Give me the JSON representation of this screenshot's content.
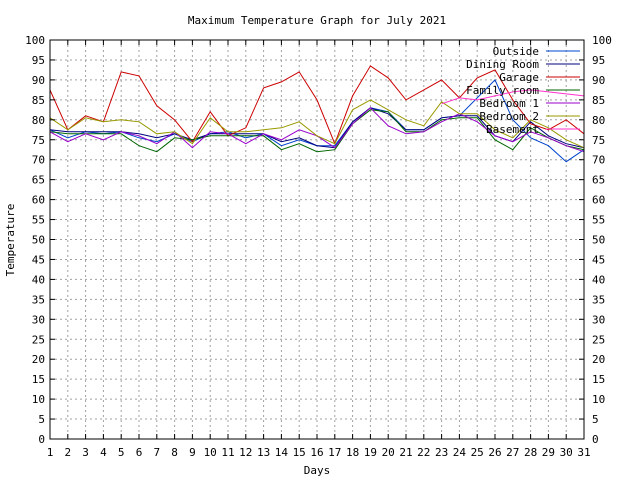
{
  "chart_data": {
    "type": "line",
    "title": "Maximum Temperature Graph for July 2021",
    "xlabel": "Days",
    "ylabel": "Temperature",
    "xlim": [
      1,
      31
    ],
    "ylim": [
      0,
      100
    ],
    "x_ticks": [
      1,
      2,
      3,
      4,
      5,
      6,
      7,
      8,
      9,
      10,
      11,
      12,
      13,
      14,
      15,
      16,
      17,
      18,
      19,
      20,
      21,
      22,
      23,
      24,
      25,
      26,
      27,
      28,
      29,
      30,
      31
    ],
    "y_ticks": [
      0,
      5,
      10,
      15,
      20,
      25,
      30,
      35,
      40,
      45,
      50,
      55,
      60,
      65,
      70,
      75,
      80,
      85,
      90,
      95,
      100
    ],
    "y_ticks_right": true,
    "grid": true,
    "legend_position": "top-right",
    "x": [
      1,
      2,
      3,
      4,
      5,
      6,
      7,
      8,
      9,
      10,
      11,
      12,
      13,
      14,
      15,
      16,
      17,
      18,
      19,
      20,
      21,
      22,
      23,
      24,
      25,
      26,
      27,
      28,
      29,
      30,
      31
    ],
    "series": [
      {
        "name": "Outside",
        "color": "#0044cc",
        "values": [
          77.5,
          75.5,
          77,
          76.5,
          77,
          75.5,
          74.5,
          76.5,
          74.5,
          76.5,
          77,
          75.5,
          76.5,
          73.5,
          75,
          73.5,
          73.5,
          79.5,
          83,
          82,
          77.5,
          77.5,
          80.5,
          81,
          85.5,
          90,
          80,
          75.5,
          73.5,
          69.5,
          72.5
        ]
      },
      {
        "name": "Dining Room",
        "color": "#000080",
        "values": [
          77.5,
          77,
          77,
          77,
          77,
          76.5,
          75.5,
          76.5,
          75,
          76.5,
          76.5,
          76.5,
          76.5,
          74.5,
          75.5,
          73.5,
          73,
          79.5,
          83,
          81.5,
          77.5,
          77.5,
          80.5,
          81,
          81,
          76,
          74.5,
          79.5,
          76,
          74,
          73
        ]
      },
      {
        "name": "Garage",
        "color": "#cc0000",
        "values": [
          87.5,
          77.5,
          81,
          79.5,
          92,
          91,
          83.5,
          80,
          74.5,
          82,
          76,
          78,
          88,
          89.5,
          92,
          85,
          74,
          86,
          93.5,
          90.5,
          85,
          87.5,
          90,
          85.5,
          90.5,
          92.5,
          85,
          79,
          77.5,
          80,
          76.5
        ]
      },
      {
        "name": "Family room",
        "color": "#006600",
        "values": [
          77,
          76.5,
          76.5,
          76.5,
          76.5,
          73.5,
          72,
          75.5,
          75,
          76,
          76,
          76,
          76,
          72.5,
          74,
          72,
          72.5,
          79,
          82.5,
          82,
          77,
          77,
          80,
          80.5,
          80.5,
          75,
          72.5,
          78,
          75.5,
          73.5,
          72.5
        ]
      },
      {
        "name": "Bedroom 1",
        "color": "#9900cc",
        "values": [
          77,
          74.5,
          76.5,
          75,
          77,
          76,
          74,
          77,
          73,
          77,
          76.5,
          74,
          76.5,
          75,
          77.5,
          76,
          73,
          79,
          83,
          78.5,
          76.5,
          77,
          79.5,
          81.5,
          79.5,
          76,
          74.5,
          77,
          75.5,
          73.5,
          72
        ]
      },
      {
        "name": "Bedroom 2",
        "color": "#999900",
        "values": [
          80.5,
          77.5,
          80.5,
          79.5,
          80,
          79.5,
          76.5,
          77,
          74,
          80.5,
          77,
          77,
          77.5,
          78,
          79.5,
          76,
          74,
          82.5,
          85,
          82.5,
          80,
          78.5,
          84.5,
          81.5,
          81.5,
          77.5,
          75.5,
          80,
          78,
          75,
          73
        ]
      },
      {
        "name": "Basement",
        "color": "#ff33cc",
        "values": [
          null,
          null,
          null,
          null,
          null,
          null,
          null,
          null,
          null,
          null,
          null,
          null,
          null,
          null,
          null,
          null,
          null,
          null,
          null,
          null,
          null,
          null,
          84,
          85.5,
          85,
          86,
          87,
          87.5,
          87,
          86.5,
          86
        ]
      }
    ]
  }
}
